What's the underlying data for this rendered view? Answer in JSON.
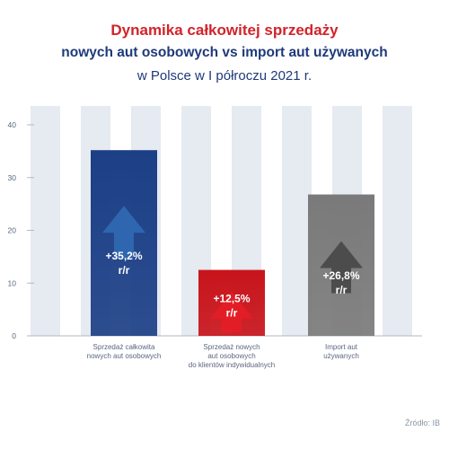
{
  "title": {
    "line1": "Dynamika całkowitej sprzedaży",
    "line2": "nowych aut osobowych vs import aut używanych",
    "line3": "w Polsce w I półroczu 2021 r."
  },
  "source": "Źródło: IB",
  "colors": {
    "title_red": "#d2232a",
    "title_blue": "#1f3a7a",
    "bar_blue": "#1c3f86",
    "bar_red": "#c8141b",
    "bar_gray": "#7a7a7a",
    "stripe": "#e6eaf1"
  },
  "chart_data": {
    "type": "bar",
    "categories": [
      [
        "Sprzedaż całkowita",
        "nowych aut osobowych"
      ],
      [
        "Sprzedaż nowych",
        "aut osobowych",
        "do klientów indywidualnych"
      ],
      [
        "Import aut",
        "używanych"
      ]
    ],
    "values": [
      35.2,
      12.5,
      26.8
    ],
    "bar_labels": [
      [
        "+35,2%",
        "r/r"
      ],
      [
        "+12,5%",
        "r/r"
      ],
      [
        "+26,8%",
        "r/r"
      ]
    ],
    "bar_colors": [
      "#1c3f86",
      "#c8141b",
      "#7a7a7a"
    ],
    "ylim": [
      0,
      40
    ],
    "yticks": [
      0,
      10,
      20,
      30,
      40
    ],
    "grid": false
  }
}
